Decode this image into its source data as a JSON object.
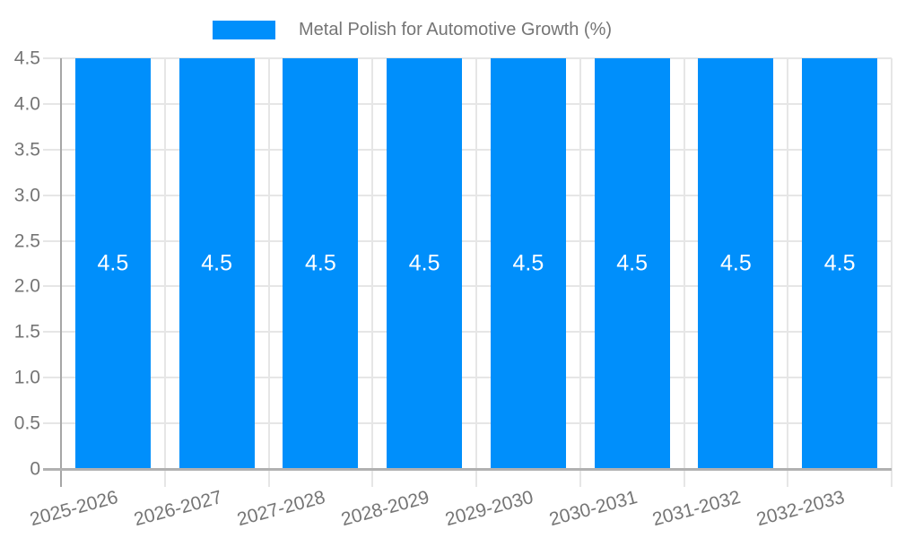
{
  "legend": {
    "label": "Metal Polish for Automotive Growth (%)"
  },
  "chart_data": {
    "type": "bar",
    "title": "Metal Polish for Automotive Growth (%)",
    "categories": [
      "2025-2026",
      "2026-2027",
      "2027-2028",
      "2028-2029",
      "2029-2030",
      "2030-2031",
      "2031-2032",
      "2032-2033"
    ],
    "series": [
      {
        "name": "Metal Polish for Automotive Growth (%)",
        "values": [
          4.5,
          4.5,
          4.5,
          4.5,
          4.5,
          4.5,
          4.5,
          4.5
        ]
      }
    ],
    "data_labels": [
      "4.5",
      "4.5",
      "4.5",
      "4.5",
      "4.5",
      "4.5",
      "4.5",
      "4.5"
    ],
    "xlabel": "",
    "ylabel": "",
    "ylim": [
      0,
      4.5
    ],
    "yticks": [
      {
        "value": 0,
        "label": "0"
      },
      {
        "value": 0.5,
        "label": "0.5"
      },
      {
        "value": 1.0,
        "label": "1.0"
      },
      {
        "value": 1.5,
        "label": "1.5"
      },
      {
        "value": 2.0,
        "label": "2.0"
      },
      {
        "value": 2.5,
        "label": "2.5"
      },
      {
        "value": 3.0,
        "label": "3.0"
      },
      {
        "value": 3.5,
        "label": "3.5"
      },
      {
        "value": 4.0,
        "label": "4.0"
      },
      {
        "value": 4.5,
        "label": "4.5"
      }
    ],
    "grid": true,
    "legend_position": "top",
    "x_label_rotation_deg": -15,
    "colors": {
      "bar": "#008FFB",
      "axis_text": "#757575",
      "gridline": "#e6e6e6",
      "axis_line": "#a6a6a6",
      "baseline": "#b1b1b1",
      "bar_label_text": "#ffffff",
      "background": "#ffffff"
    }
  }
}
